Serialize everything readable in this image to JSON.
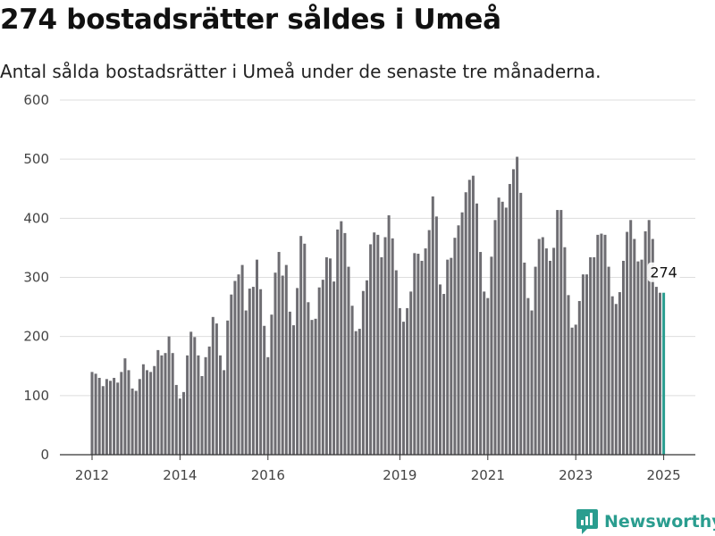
{
  "title": "274 bostadsrätter såldes i Umeå",
  "subtitle": "Antal sålda bostadsrätter i Umeå under de senaste tre månaderna.",
  "brand": {
    "name": "Newsworthy",
    "icon": "newsworthy-logo-icon",
    "color": "#2a9d8f"
  },
  "colors": {
    "bars": "#6e6d72",
    "highlight": "#2a9d8f",
    "grid": "#dddddd"
  },
  "chart_data": {
    "type": "bar",
    "title": "274 bostadsrätter såldes i Umeå",
    "subtitle": "Antal sålda bostadsrätter i Umeå under de senaste tre månaderna.",
    "xlabel": "",
    "ylabel": "",
    "ylim": [
      0,
      600
    ],
    "yticks": [
      0,
      100,
      200,
      300,
      400,
      500,
      600
    ],
    "xticks": [
      {
        "label": "2012",
        "index": 0
      },
      {
        "label": "2014",
        "index": 24
      },
      {
        "label": "2016",
        "index": 48
      },
      {
        "label": "2019",
        "index": 84
      },
      {
        "label": "2021",
        "index": 108
      },
      {
        "label": "2023",
        "index": 132
      },
      {
        "label": "2025",
        "index": 156
      }
    ],
    "grid": true,
    "highlight_last": true,
    "callout": {
      "index": 156,
      "label": "274"
    },
    "values": [
      140,
      137,
      130,
      116,
      128,
      125,
      130,
      122,
      140,
      163,
      143,
      112,
      108,
      128,
      153,
      143,
      140,
      150,
      177,
      168,
      172,
      200,
      172,
      118,
      95,
      106,
      168,
      208,
      199,
      168,
      133,
      165,
      183,
      233,
      222,
      168,
      143,
      227,
      271,
      294,
      305,
      321,
      244,
      281,
      284,
      330,
      280,
      218,
      165,
      237,
      308,
      343,
      303,
      321,
      242,
      219,
      282,
      370,
      357,
      258,
      228,
      230,
      283,
      296,
      334,
      332,
      293,
      381,
      395,
      375,
      318,
      252,
      209,
      213,
      277,
      295,
      356,
      376,
      372,
      334,
      368,
      405,
      366,
      312,
      248,
      225,
      248,
      276,
      341,
      340,
      328,
      349,
      380,
      437,
      403,
      288,
      272,
      330,
      333,
      367,
      388,
      410,
      444,
      465,
      472,
      425,
      343,
      276,
      265,
      335,
      397,
      435,
      428,
      418,
      458,
      483,
      504,
      443,
      325,
      265,
      244,
      318,
      365,
      368,
      349,
      328,
      350,
      414,
      414,
      351,
      270,
      215,
      220,
      260,
      305,
      305,
      334,
      334,
      372,
      374,
      372,
      318,
      268,
      255,
      275,
      328,
      377,
      397,
      365,
      327,
      330,
      378,
      397,
      365,
      284,
      274,
      274
    ]
  }
}
